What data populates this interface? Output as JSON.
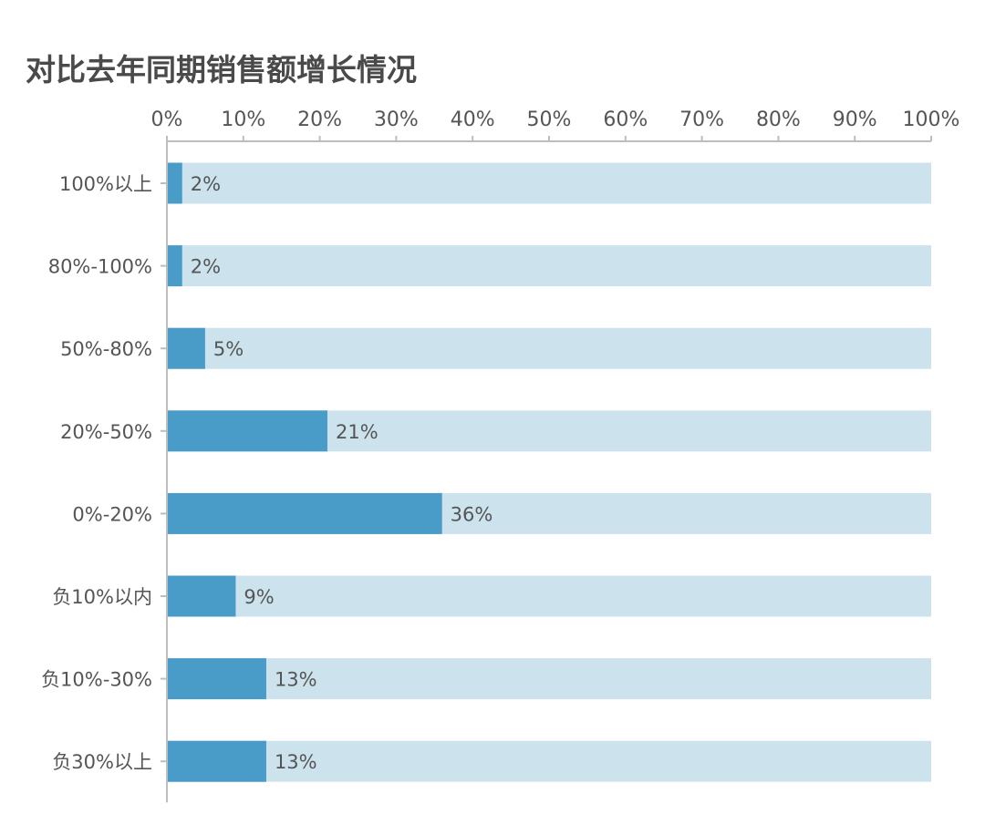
{
  "chart_data": {
    "type": "bar",
    "orientation": "horizontal",
    "title": "对比去年同期销售额增长情况",
    "categories": [
      "100%以上",
      "80%-100%",
      "50%-80%",
      "20%-50%",
      "0%-20%",
      "负10%以内",
      "负10%-30%",
      "负30%以上"
    ],
    "values": [
      2,
      2,
      5,
      21,
      36,
      9,
      13,
      13
    ],
    "value_labels": [
      "2%",
      "2%",
      "5%",
      "21%",
      "36%",
      "9%",
      "13%",
      "13%"
    ],
    "x_ticks": [
      "0%",
      "10%",
      "20%",
      "30%",
      "40%",
      "50%",
      "60%",
      "70%",
      "80%",
      "90%",
      "100%"
    ],
    "xlim": [
      0,
      100
    ],
    "x_axis_position": "top",
    "grid": false,
    "colors": {
      "bar": "#4a9cc8",
      "track": "#cce3ee",
      "axis": "#bdbdbd",
      "text": "#555555"
    }
  }
}
